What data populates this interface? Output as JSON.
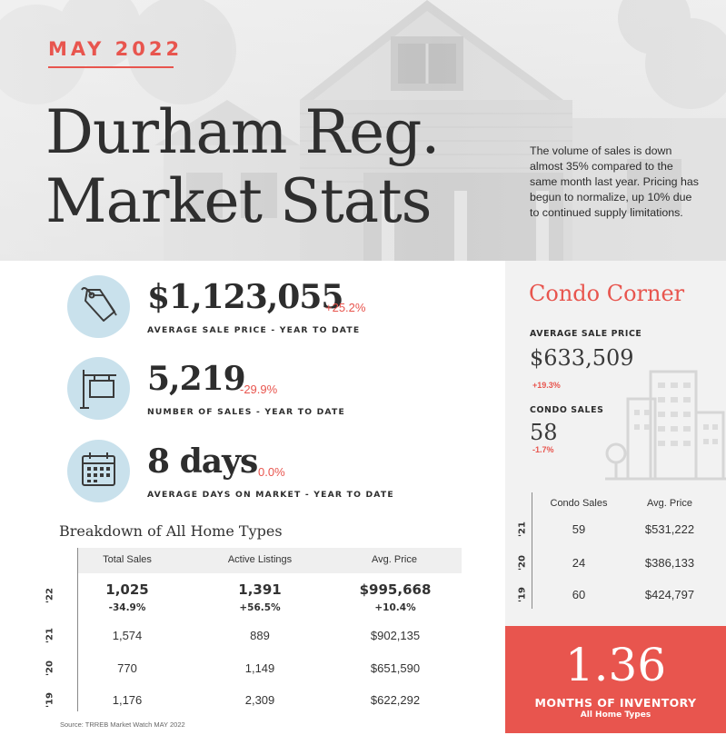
{
  "header": {
    "month": "MAY 2022",
    "title_line1": "Durham Reg.",
    "title_line2": "Market Stats",
    "intro": "The volume of sales is down almost 35% compared to the same month last year.  Pricing has begun to normalize, up 10% due to continued supply limitations."
  },
  "stats": [
    {
      "icon": "price-tag-icon",
      "value": "$1,123,055",
      "change": "+25.2%",
      "caption": "AVERAGE SALE PRICE - YEAR TO DATE"
    },
    {
      "icon": "for-sale-sign-icon",
      "value": "5,219",
      "change": "-29.9%",
      "caption": "NUMBER OF SALES - YEAR TO DATE"
    },
    {
      "icon": "calendar-icon",
      "value": "8 days",
      "change": "0.0%",
      "caption": "AVERAGE DAYS ON MARKET - YEAR TO DATE"
    }
  ],
  "breakdown": {
    "title": "Breakdown of All Home Types",
    "columns": [
      "Total Sales",
      "Active Listings",
      "Avg. Price"
    ],
    "rows": [
      {
        "year": "'22",
        "values": [
          "1,025",
          "1,391",
          "$995,668"
        ],
        "changes": [
          "-34.9%",
          "+56.5%",
          "+10.4%"
        ]
      },
      {
        "year": "'21",
        "values": [
          "1,574",
          "889",
          "$902,135"
        ]
      },
      {
        "year": "'20",
        "values": [
          "770",
          "1,149",
          "$651,590"
        ]
      },
      {
        "year": "'19",
        "values": [
          "1,176",
          "2,309",
          "$622,292"
        ]
      }
    ],
    "source": "Source: TRREB Market Watch MAY 2022"
  },
  "condo": {
    "title": "Condo Corner",
    "avg_price_label": "AVERAGE SALE PRICE",
    "avg_price": "$633,509",
    "avg_price_change": "+19.3%",
    "sales_label": "CONDO SALES",
    "sales": "58",
    "sales_change": "-1.7%",
    "columns": [
      "Condo Sales",
      "Avg. Price"
    ],
    "rows": [
      {
        "year": "'21",
        "values": [
          "59",
          "$531,222"
        ]
      },
      {
        "year": "'20",
        "values": [
          "24",
          "$386,133"
        ]
      },
      {
        "year": "'19",
        "values": [
          "60",
          "$424,797"
        ]
      }
    ]
  },
  "inventory": {
    "value": "1.36",
    "label": "MONTHS OF INVENTORY",
    "sublabel": "All Home Types"
  },
  "colors": {
    "accent": "#e8554e",
    "icon_circle": "#c9e1ec",
    "text": "#2d2d2d",
    "panel": "#f2f2f2"
  }
}
